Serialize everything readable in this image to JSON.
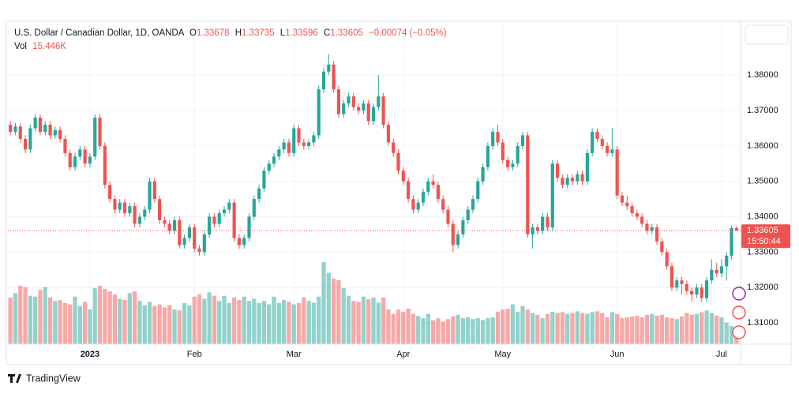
{
  "chart_data": {
    "type": "candlestick",
    "title": "U.S. Dollar / Canadian Dollar, 1D, OANDA",
    "ohlc_labels": [
      "O",
      "H",
      "L",
      "C"
    ],
    "change": "−0.00074 (−0.05%)",
    "volume_title": "Vol",
    "volume_label": "15.446K",
    "countdown": "15:50:44",
    "up_color": "#26a69a",
    "down_color": "#ef5350",
    "categories": [
      null,
      null,
      null,
      null,
      null,
      null,
      null,
      null,
      null,
      null,
      null,
      null,
      null,
      null,
      null,
      null,
      "2023",
      null,
      null,
      null,
      null,
      null,
      null,
      null,
      null,
      null,
      null,
      null,
      null,
      null,
      null,
      null,
      null,
      null,
      null,
      null,
      null,
      "Feb",
      null,
      null,
      null,
      null,
      null,
      null,
      null,
      null,
      null,
      null,
      null,
      null,
      null,
      null,
      null,
      null,
      null,
      null,
      null,
      "Mar",
      null,
      null,
      null,
      null,
      null,
      null,
      null,
      null,
      null,
      null,
      null,
      null,
      null,
      null,
      null,
      null,
      null,
      null,
      null,
      null,
      null,
      "Apr",
      null,
      null,
      null,
      null,
      null,
      null,
      null,
      null,
      null,
      null,
      null,
      null,
      null,
      null,
      null,
      null,
      null,
      null,
      null,
      "May",
      null,
      null,
      null,
      null,
      null,
      null,
      null,
      null,
      null,
      null,
      null,
      null,
      null,
      null,
      null,
      null,
      null,
      null,
      null,
      null,
      null,
      null,
      "Jun",
      null,
      null,
      null,
      null,
      null,
      null,
      null,
      null,
      null,
      null,
      null,
      null,
      null,
      null,
      null,
      null,
      null,
      null,
      null,
      null,
      "Jul",
      null,
      null,
      null
    ],
    "ohlc": [
      [
        1.366,
        1.367,
        1.363,
        1.364
      ],
      [
        1.364,
        1.3665,
        1.363,
        1.3655
      ],
      [
        1.3655,
        1.3665,
        1.361,
        1.362
      ],
      [
        1.362,
        1.363,
        1.358,
        1.359
      ],
      [
        1.359,
        1.366,
        1.358,
        1.365
      ],
      [
        1.365,
        1.369,
        1.364,
        1.368
      ],
      [
        1.368,
        1.369,
        1.363,
        1.364
      ],
      [
        1.364,
        1.367,
        1.363,
        1.366
      ],
      [
        1.366,
        1.367,
        1.362,
        1.363
      ],
      [
        1.363,
        1.3655,
        1.362,
        1.3645
      ],
      [
        1.3645,
        1.3655,
        1.361,
        1.362
      ],
      [
        1.362,
        1.363,
        1.357,
        1.358
      ],
      [
        1.358,
        1.359,
        1.353,
        1.354
      ],
      [
        1.354,
        1.358,
        1.353,
        1.357
      ],
      [
        1.357,
        1.36,
        1.356,
        1.359
      ],
      [
        1.359,
        1.36,
        1.354,
        1.355
      ],
      [
        1.355,
        1.358,
        1.354,
        1.357
      ],
      [
        1.357,
        1.369,
        1.356,
        1.368
      ],
      [
        1.368,
        1.369,
        1.359,
        1.36
      ],
      [
        1.36,
        1.361,
        1.348,
        1.349
      ],
      [
        1.349,
        1.35,
        1.344,
        1.345
      ],
      [
        1.345,
        1.346,
        1.341,
        1.342
      ],
      [
        1.342,
        1.345,
        1.341,
        1.344
      ],
      [
        1.344,
        1.345,
        1.34,
        1.341
      ],
      [
        1.341,
        1.344,
        1.34,
        1.343
      ],
      [
        1.343,
        1.344,
        1.337,
        1.338
      ],
      [
        1.338,
        1.341,
        1.337,
        1.34
      ],
      [
        1.34,
        1.343,
        1.339,
        1.342
      ],
      [
        1.342,
        1.351,
        1.341,
        1.35
      ],
      [
        1.35,
        1.351,
        1.344,
        1.345
      ],
      [
        1.345,
        1.346,
        1.338,
        1.339
      ],
      [
        1.339,
        1.34,
        1.337,
        1.338
      ],
      [
        1.338,
        1.339,
        1.335,
        1.336
      ],
      [
        1.336,
        1.34,
        1.335,
        1.339
      ],
      [
        1.339,
        1.34,
        1.331,
        1.332
      ],
      [
        1.332,
        1.335,
        1.331,
        1.334
      ],
      [
        1.334,
        1.338,
        1.333,
        1.337
      ],
      [
        1.337,
        1.338,
        1.33,
        1.331
      ],
      [
        1.331,
        1.332,
        1.329,
        1.33
      ],
      [
        1.33,
        1.336,
        1.329,
        1.335
      ],
      [
        1.335,
        1.341,
        1.334,
        1.34
      ],
      [
        1.34,
        1.341,
        1.337,
        1.338
      ],
      [
        1.338,
        1.342,
        1.337,
        1.341
      ],
      [
        1.341,
        1.343,
        1.34,
        1.342
      ],
      [
        1.342,
        1.345,
        1.341,
        1.344
      ],
      [
        1.344,
        1.345,
        1.333,
        1.334
      ],
      [
        1.334,
        1.335,
        1.331,
        1.332
      ],
      [
        1.332,
        1.335,
        1.331,
        1.334
      ],
      [
        1.334,
        1.341,
        1.333,
        1.34
      ],
      [
        1.34,
        1.346,
        1.339,
        1.345
      ],
      [
        1.345,
        1.349,
        1.344,
        1.348
      ],
      [
        1.348,
        1.354,
        1.347,
        1.353
      ],
      [
        1.353,
        1.356,
        1.352,
        1.355
      ],
      [
        1.355,
        1.358,
        1.354,
        1.357
      ],
      [
        1.357,
        1.36,
        1.356,
        1.359
      ],
      [
        1.359,
        1.362,
        1.358,
        1.361
      ],
      [
        1.361,
        1.362,
        1.357,
        1.358
      ],
      [
        1.358,
        1.366,
        1.357,
        1.365
      ],
      [
        1.365,
        1.366,
        1.36,
        1.361
      ],
      [
        1.361,
        1.362,
        1.359,
        1.36
      ],
      [
        1.36,
        1.362,
        1.359,
        1.361
      ],
      [
        1.361,
        1.364,
        1.36,
        1.363
      ],
      [
        1.363,
        1.377,
        1.362,
        1.376
      ],
      [
        1.376,
        1.382,
        1.375,
        1.381
      ],
      [
        1.381,
        1.386,
        1.38,
        1.383
      ],
      [
        1.383,
        1.384,
        1.375,
        1.376
      ],
      [
        1.376,
        1.377,
        1.368,
        1.369
      ],
      [
        1.369,
        1.373,
        1.368,
        1.372
      ],
      [
        1.372,
        1.375,
        1.371,
        1.374
      ],
      [
        1.374,
        1.375,
        1.37,
        1.371
      ],
      [
        1.371,
        1.372,
        1.369,
        1.37
      ],
      [
        1.37,
        1.373,
        1.369,
        1.372
      ],
      [
        1.372,
        1.373,
        1.366,
        1.367
      ],
      [
        1.367,
        1.372,
        1.366,
        1.371
      ],
      [
        1.371,
        1.38,
        1.37,
        1.374
      ],
      [
        1.374,
        1.375,
        1.365,
        1.366
      ],
      [
        1.366,
        1.367,
        1.36,
        1.361
      ],
      [
        1.361,
        1.362,
        1.357,
        1.358
      ],
      [
        1.358,
        1.359,
        1.352,
        1.353
      ],
      [
        1.353,
        1.354,
        1.349,
        1.35
      ],
      [
        1.35,
        1.351,
        1.344,
        1.345
      ],
      [
        1.345,
        1.346,
        1.341,
        1.342
      ],
      [
        1.342,
        1.345,
        1.341,
        1.344
      ],
      [
        1.344,
        1.348,
        1.343,
        1.347
      ],
      [
        1.347,
        1.351,
        1.346,
        1.35
      ],
      [
        1.35,
        1.352,
        1.348,
        1.349
      ],
      [
        1.349,
        1.35,
        1.344,
        1.345
      ],
      [
        1.345,
        1.346,
        1.341,
        1.342
      ],
      [
        1.342,
        1.343,
        1.337,
        1.338
      ],
      [
        1.338,
        1.339,
        1.33,
        1.332
      ],
      [
        1.332,
        1.336,
        1.331,
        1.335
      ],
      [
        1.335,
        1.34,
        1.334,
        1.339
      ],
      [
        1.339,
        1.343,
        1.338,
        1.342
      ],
      [
        1.342,
        1.346,
        1.341,
        1.345
      ],
      [
        1.345,
        1.351,
        1.344,
        1.35
      ],
      [
        1.35,
        1.355,
        1.349,
        1.354
      ],
      [
        1.354,
        1.361,
        1.353,
        1.36
      ],
      [
        1.36,
        1.365,
        1.359,
        1.364
      ],
      [
        1.364,
        1.366,
        1.36,
        1.361
      ],
      [
        1.361,
        1.362,
        1.355,
        1.356
      ],
      [
        1.356,
        1.357,
        1.353,
        1.354
      ],
      [
        1.354,
        1.356,
        1.353,
        1.355
      ],
      [
        1.355,
        1.361,
        1.354,
        1.36
      ],
      [
        1.36,
        1.364,
        1.359,
        1.363
      ],
      [
        1.363,
        1.364,
        1.334,
        1.335
      ],
      [
        1.335,
        1.338,
        1.331,
        1.337
      ],
      [
        1.337,
        1.338,
        1.335,
        1.336
      ],
      [
        1.336,
        1.341,
        1.335,
        1.34
      ],
      [
        1.34,
        1.341,
        1.336,
        1.337
      ],
      [
        1.337,
        1.356,
        1.336,
        1.355
      ],
      [
        1.355,
        1.356,
        1.35,
        1.351
      ],
      [
        1.351,
        1.352,
        1.348,
        1.349
      ],
      [
        1.349,
        1.352,
        1.348,
        1.351
      ],
      [
        1.351,
        1.352,
        1.349,
        1.35
      ],
      [
        1.35,
        1.353,
        1.349,
        1.352
      ],
      [
        1.352,
        1.353,
        1.349,
        1.35
      ],
      [
        1.35,
        1.359,
        1.349,
        1.358
      ],
      [
        1.358,
        1.365,
        1.357,
        1.364
      ],
      [
        1.364,
        1.365,
        1.361,
        1.362
      ],
      [
        1.362,
        1.363,
        1.359,
        1.36
      ],
      [
        1.36,
        1.361,
        1.357,
        1.358
      ],
      [
        1.358,
        1.365,
        1.357,
        1.359
      ],
      [
        1.359,
        1.36,
        1.345,
        1.346
      ],
      [
        1.346,
        1.347,
        1.343,
        1.344
      ],
      [
        1.344,
        1.346,
        1.342,
        1.343
      ],
      [
        1.343,
        1.344,
        1.34,
        1.341
      ],
      [
        1.341,
        1.342,
        1.339,
        1.34
      ],
      [
        1.34,
        1.341,
        1.337,
        1.338
      ],
      [
        1.338,
        1.339,
        1.335,
        1.336
      ],
      [
        1.336,
        1.338,
        1.335,
        1.337
      ],
      [
        1.337,
        1.338,
        1.332,
        1.333
      ],
      [
        1.333,
        1.334,
        1.329,
        1.33
      ],
      [
        1.33,
        1.331,
        1.325,
        1.326
      ],
      [
        1.326,
        1.327,
        1.319,
        1.32
      ],
      [
        1.32,
        1.323,
        1.319,
        1.322
      ],
      [
        1.322,
        1.323,
        1.318,
        1.321
      ],
      [
        1.321,
        1.322,
        1.318,
        1.319
      ],
      [
        1.319,
        1.32,
        1.316,
        1.318
      ],
      [
        1.318,
        1.321,
        1.317,
        1.32
      ],
      [
        1.32,
        1.321,
        1.316,
        1.317
      ],
      [
        1.317,
        1.323,
        1.316,
        1.322
      ],
      [
        1.322,
        1.328,
        1.321,
        1.325
      ],
      [
        1.325,
        1.327,
        1.323,
        1.324
      ],
      [
        1.324,
        1.328,
        1.323,
        1.326
      ],
      [
        1.326,
        1.33,
        1.322,
        1.329
      ],
      [
        1.329,
        1.3375,
        1.328,
        1.3368
      ],
      [
        1.33678,
        1.33735,
        1.33596,
        1.33605
      ]
    ],
    "volume": [
      108000,
      118000,
      135000,
      132000,
      112000,
      110000,
      125000,
      132000,
      108000,
      100000,
      102000,
      95000,
      92000,
      110000,
      88000,
      98000,
      80000,
      130000,
      135000,
      128000,
      122000,
      115000,
      105000,
      102000,
      118000,
      122000,
      100000,
      90000,
      98000,
      88000,
      92000,
      85000,
      90000,
      80000,
      78000,
      95000,
      90000,
      110000,
      115000,
      105000,
      120000,
      112000,
      100000,
      112000,
      95000,
      108000,
      102000,
      110000,
      100000,
      105000,
      95000,
      100000,
      92000,
      110000,
      95000,
      102000,
      98000,
      92000,
      95000,
      108000,
      100000,
      96000,
      110000,
      190000,
      165000,
      152000,
      148000,
      130000,
      112000,
      100000,
      98000,
      110000,
      104000,
      108000,
      96000,
      108000,
      80000,
      70000,
      80000,
      75000,
      82000,
      70000,
      65000,
      60000,
      70000,
      55000,
      60000,
      52000,
      58000,
      64000,
      68000,
      60000,
      62000,
      58000,
      60000,
      56000,
      60000,
      62000,
      75000,
      80000,
      82000,
      92000,
      75000,
      88000,
      80000,
      72000,
      68000,
      60000,
      70000,
      75000,
      72000,
      74000,
      70000,
      72000,
      76000,
      72000,
      70000,
      74000,
      76000,
      72000,
      62000,
      74000,
      70000,
      60000,
      62000,
      64000,
      66000,
      62000,
      68000,
      70000,
      66000,
      68000,
      62000,
      60000,
      58000,
      64000,
      72000,
      68000,
      70000,
      74000,
      78000,
      72000,
      66000,
      62000,
      50000,
      42000,
      15446
    ],
    "ylim": [
      1.304,
      1.395
    ],
    "yticks": [
      {
        "value": 1.31,
        "label": "1.31000"
      },
      {
        "value": 1.32,
        "label": "1.32000"
      },
      {
        "value": 1.33,
        "label": "1.33000"
      },
      {
        "value": 1.34,
        "label": "1.34000"
      },
      {
        "value": 1.35,
        "label": "1.35000"
      },
      {
        "value": 1.36,
        "label": "1.36000"
      },
      {
        "value": 1.37,
        "label": "1.37000"
      },
      {
        "value": 1.38,
        "label": "1.38000"
      }
    ],
    "grid": true
  },
  "branding": "TradingView"
}
